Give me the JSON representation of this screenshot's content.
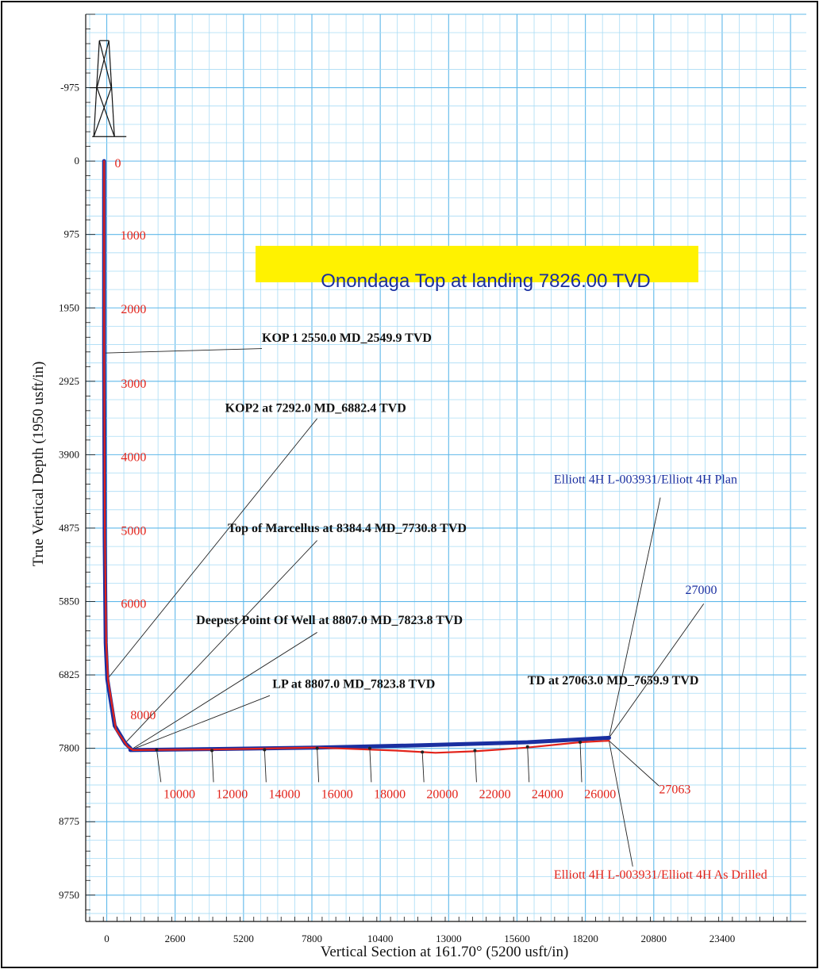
{
  "chart_data": {
    "type": "line",
    "xlabel": "Vertical Section at 161.70° (5200 usft/in)",
    "ylabel": "True Vertical Depth (1950 usft/in)",
    "xlim": [
      -800,
      26600
    ],
    "ylim": [
      10100,
      -1950
    ],
    "y_inverted": true,
    "grid": true,
    "x_ticks": [
      "0",
      "2600",
      "5200",
      "7800",
      "10400",
      "13000",
      "15600",
      "18200",
      "20800",
      "23400"
    ],
    "x_tick_values": [
      0,
      2600,
      5200,
      7800,
      10400,
      13000,
      15600,
      18200,
      20800,
      23400
    ],
    "y_ticks": [
      "-975",
      "0",
      "975",
      "1950",
      "2925",
      "3900",
      "4875",
      "5850",
      "6825",
      "7800",
      "8775",
      "9750"
    ],
    "y_tick_values": [
      -975,
      0,
      975,
      1950,
      2925,
      3900,
      4875,
      5850,
      6825,
      7800,
      8775,
      9750
    ],
    "series": [
      {
        "name": "Elliott 4H L-003931/Elliott 4H Plan",
        "color": "#1a2fa0",
        "points": [
          [
            -100,
            0
          ],
          [
            -100,
            2550
          ],
          [
            -80,
            5000
          ],
          [
            -40,
            6400
          ],
          [
            20,
            6882
          ],
          [
            300,
            7500
          ],
          [
            700,
            7731
          ],
          [
            900,
            7800
          ],
          [
            900,
            7824
          ],
          [
            4000,
            7810
          ],
          [
            8000,
            7790
          ],
          [
            12000,
            7760
          ],
          [
            16000,
            7720
          ],
          [
            19100,
            7660
          ]
        ]
      },
      {
        "name": "Elliott 4H L-003931/Elliott 4H As Drilled",
        "color": "#e2231a",
        "points": [
          [
            -100,
            0
          ],
          [
            -100,
            2550
          ],
          [
            -70,
            5000
          ],
          [
            -20,
            6400
          ],
          [
            50,
            6900
          ],
          [
            350,
            7550
          ],
          [
            800,
            7780
          ],
          [
            1000,
            7824
          ],
          [
            4000,
            7815
          ],
          [
            8000,
            7790
          ],
          [
            11000,
            7830
          ],
          [
            12500,
            7860
          ],
          [
            14000,
            7840
          ],
          [
            16000,
            7790
          ],
          [
            18000,
            7720
          ],
          [
            19100,
            7700
          ]
        ]
      }
    ],
    "md_labels": [
      {
        "text": "0",
        "x": 300,
        "y": 20
      },
      {
        "text": "1000",
        "x": 520,
        "y": 980
      },
      {
        "text": "2000",
        "x": 540,
        "y": 1960
      },
      {
        "text": "3000",
        "x": 540,
        "y": 2950
      },
      {
        "text": "4000",
        "x": 540,
        "y": 3920
      },
      {
        "text": "5000",
        "x": 540,
        "y": 4900
      },
      {
        "text": "6000",
        "x": 540,
        "y": 5870
      },
      {
        "text": "8000",
        "x": 900,
        "y": 7350
      }
    ],
    "md_ticks": [
      {
        "text": "10000",
        "x": 2760,
        "y": 8400,
        "mx": 1900,
        "my": 7820
      },
      {
        "text": "12000",
        "x": 4760,
        "y": 8400,
        "mx": 4000,
        "my": 7830
      },
      {
        "text": "14000",
        "x": 6760,
        "y": 8400,
        "mx": 6000,
        "my": 7820
      },
      {
        "text": "16000",
        "x": 8760,
        "y": 8400,
        "mx": 8000,
        "my": 7800
      },
      {
        "text": "18000",
        "x": 10760,
        "y": 8400,
        "mx": 10000,
        "my": 7800
      },
      {
        "text": "20000",
        "x": 12760,
        "y": 8400,
        "mx": 12000,
        "my": 7850
      },
      {
        "text": "22000",
        "x": 14760,
        "y": 8400,
        "mx": 14000,
        "my": 7830
      },
      {
        "text": "24000",
        "x": 16760,
        "y": 8400,
        "mx": 16000,
        "my": 7780
      },
      {
        "text": "26000",
        "x": 18760,
        "y": 8400,
        "mx": 18000,
        "my": 7720
      }
    ],
    "highlight": {
      "text": "Onondaga Top at landing 7826.00 TVD",
      "color": "#fff200",
      "text_color": "#1a2fa0"
    },
    "annotations": [
      {
        "text": "KOP 1 2550.0 MD_2549.9 TVD",
        "tx": 5900,
        "ty": 2400,
        "ax": -100,
        "ay": 2550,
        "lx": 5900,
        "ly": 2490,
        "anchor": "start"
      },
      {
        "text": "KOP2 at 7292.0 MD_6882.4 TVD",
        "tx": 4500,
        "ty": 3330,
        "ax": 20,
        "ay": 6882,
        "lx": 8000,
        "ly": 3420,
        "anchor": "start"
      },
      {
        "text": "Top of Marcellus at 8384.4 MD_7730.8 TVD",
        "tx": 4600,
        "ty": 4930,
        "ax": 700,
        "ay": 7731,
        "lx": 8000,
        "ly": 5040,
        "anchor": "start"
      },
      {
        "text": "Deepest Point Of Well  at 8807.0 MD_7823.8 TVD",
        "tx": 3400,
        "ty": 6150,
        "ax": 900,
        "ay": 7824,
        "lx": 8000,
        "ly": 6260,
        "anchor": "start"
      },
      {
        "text": "LP at 8807.0 MD_7823.8 TVD",
        "tx": 6300,
        "ty": 7000,
        "ax": 900,
        "ay": 7824,
        "lx": 6200,
        "ly": 7100,
        "anchor": "start"
      },
      {
        "text": "TD at 27063.0 MD_7659.9 TVD",
        "tx": 16000,
        "ty": 6950,
        "ax": 19100,
        "ay": 7660,
        "lx": 19100,
        "ly": 7660,
        "anchor": "start"
      }
    ],
    "well_labels": [
      {
        "text": "Elliott 4H L-003931/Elliott 4H Plan",
        "color": "#1a2fa0",
        "tx": 17000,
        "ty": 4280,
        "lx": 21050,
        "ly": 4470,
        "ax": 19100,
        "ay": 7660
      },
      {
        "text": "27000",
        "color": "#1a2fa0",
        "tx": 22000,
        "ty": 5750,
        "lx": 22700,
        "ly": 5880,
        "ax": 19100,
        "ay": 7660
      },
      {
        "text": "27063",
        "color": "#e2231a",
        "tx": 21000,
        "ty": 8400,
        "lx": 21000,
        "ly": 8300,
        "ax": 19100,
        "ay": 7700
      },
      {
        "text": "Elliott 4H L-003931/Elliott 4H As Drilled",
        "color": "#e2231a",
        "tx": 17000,
        "ty": 9530,
        "lx": 20000,
        "ly": 9370,
        "ax": 19100,
        "ay": 7700
      }
    ]
  }
}
